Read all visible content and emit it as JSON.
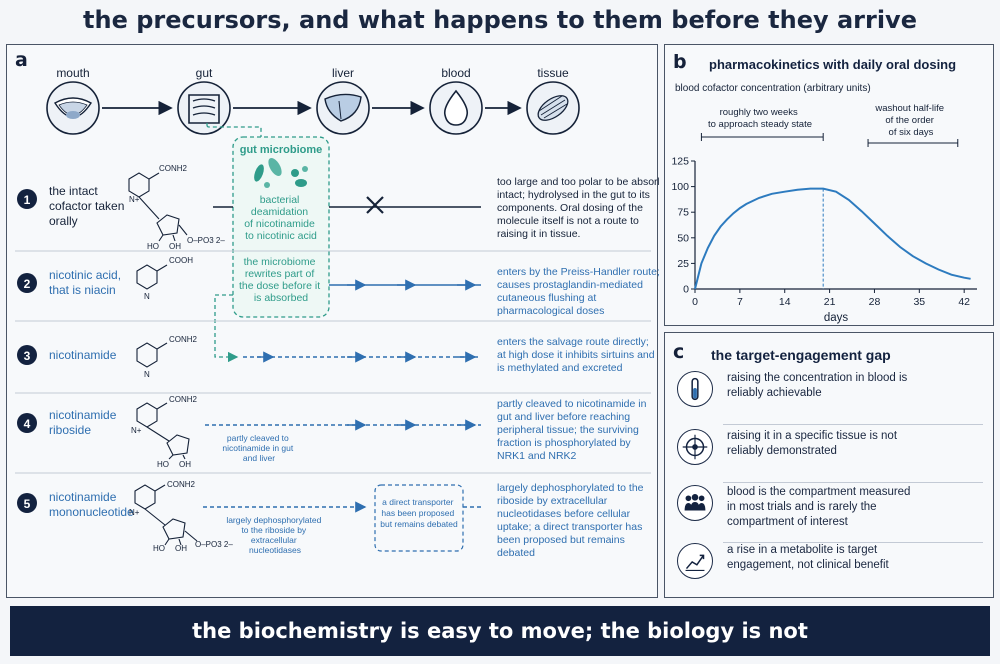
{
  "title": "the precursors, and what happens to them before they arrive",
  "footer": "the biochemistry is easy to move; the biology is not",
  "panel_a": {
    "label": "a",
    "stages": [
      "mouth",
      "gut",
      "liver",
      "blood",
      "tissue"
    ],
    "microbiome": {
      "title": "gut microbiome",
      "text1": [
        "bacterial",
        "deamidation",
        "of nicotinamide",
        "to nicotinic acid"
      ],
      "text2": [
        "the microbiome",
        "rewrites part of",
        "the dose before it",
        "is absorbed"
      ]
    },
    "rows": [
      {
        "num": "1",
        "name": [
          "the intact",
          "cofactor taken",
          "orally"
        ],
        "formula": [
          "CONH2",
          "N+",
          "HO",
          "OH",
          "O–PO3 2–"
        ],
        "desc": [
          "too large and too polar to be absorbed",
          "intact; hydrolysed in the gut to its",
          "components. Oral dosing of the",
          "molecule itself is not a route to",
          "raising it in tissue."
        ]
      },
      {
        "num": "2",
        "name": [
          "nicotinic acid,",
          "that is niacin"
        ],
        "formula": [
          "COOH",
          "N"
        ],
        "desc": [
          "enters by the Preiss-Handler route;",
          "causes prostaglandin-mediated",
          "cutaneous flushing at",
          "pharmacological doses"
        ]
      },
      {
        "num": "3",
        "name": [
          "nicotinamide"
        ],
        "formula": [
          "CONH2",
          "N"
        ],
        "desc": [
          "enters the salvage route directly;",
          "at high dose it inhibits sirtuins and",
          "is methylated and excreted"
        ]
      },
      {
        "num": "4",
        "name": [
          "nicotinamide",
          "riboside"
        ],
        "formula": [
          "CONH2",
          "N+",
          "HO",
          "OH"
        ],
        "note": [
          "partly cleaved to",
          "nicotinamide in gut",
          "and liver"
        ],
        "desc": [
          "partly cleaved to nicotinamide in",
          "gut and liver before reaching",
          "peripheral tissue; the surviving",
          "fraction is phosphorylated by",
          "NRK1 and NRK2"
        ]
      },
      {
        "num": "5",
        "name": [
          "nicotinamide",
          "mononucleotide"
        ],
        "formula": [
          "CONH2",
          "N+",
          "HO",
          "OH",
          "O–PO3 2–"
        ],
        "note": [
          "largely dephosphorylated",
          "to the riboside by",
          "extracellular",
          "nucleotidases"
        ],
        "box": [
          "a direct transporter",
          "has been proposed",
          "but remains debated"
        ],
        "desc": [
          "largely dephosphorylated to the",
          "riboside by extracellular",
          "nucleotidases before cellular",
          "uptake; a direct transporter has",
          "been proposed but remains",
          "debated"
        ]
      }
    ]
  },
  "panel_b": {
    "label": "b",
    "title": "pharmacokinetics with daily oral dosing",
    "ylabel": "blood cofactor concentration (arbitrary units)",
    "annot1": [
      "roughly two weeks",
      "to approach steady state"
    ],
    "annot2": [
      "washout half-life",
      "of the order",
      "of six days"
    ]
  },
  "chart_data": {
    "type": "line",
    "xlabel": "days",
    "ylabel": "blood cofactor concentration (arbitrary units)",
    "xlim": [
      0,
      44
    ],
    "ylim": [
      0,
      125
    ],
    "xticks": [
      0,
      7,
      14,
      21,
      28,
      35,
      42
    ],
    "yticks": [
      0,
      25,
      50,
      75,
      100,
      125
    ],
    "dosing_stop_day": 20,
    "x": [
      0,
      1,
      2,
      3,
      4,
      5,
      6,
      7,
      8,
      10,
      12,
      14,
      16,
      18,
      20,
      22,
      24,
      26,
      28,
      30,
      32,
      34,
      36,
      38,
      40,
      42,
      43
    ],
    "y": [
      0,
      25,
      40,
      52,
      61,
      68,
      74,
      79,
      83,
      89,
      93,
      95,
      97,
      98,
      98,
      95,
      87,
      76,
      64,
      52,
      41,
      32,
      25,
      19,
      14,
      11,
      10
    ],
    "grid": false,
    "series": [
      {
        "values": [
          0,
          25,
          40,
          52,
          61,
          68,
          74,
          79,
          83,
          89,
          93,
          95,
          97,
          98,
          98,
          95,
          87,
          76,
          64,
          52,
          41,
          32,
          25,
          19,
          14,
          11,
          10
        ]
      }
    ]
  },
  "panel_c": {
    "label": "c",
    "title": "the target-engagement gap",
    "items": [
      {
        "icon": "test-tube-icon",
        "text": [
          "raising the concentration in blood is",
          "reliably achievable"
        ]
      },
      {
        "icon": "target-icon",
        "text": [
          "raising it in a specific tissue is not",
          "reliably demonstrated"
        ]
      },
      {
        "icon": "people-icon",
        "text": [
          "blood is the compartment measured",
          "in most trials and is rarely the",
          "compartment of interest"
        ]
      },
      {
        "icon": "trend-chart-icon",
        "text": [
          "a rise in a metabolite is target",
          "engagement, not clinical benefit"
        ]
      }
    ]
  },
  "colors": {
    "navy": "#13223f",
    "blue": "#2f6fb0",
    "teal": "#2f9c8a",
    "line": "#2d7bbf"
  }
}
